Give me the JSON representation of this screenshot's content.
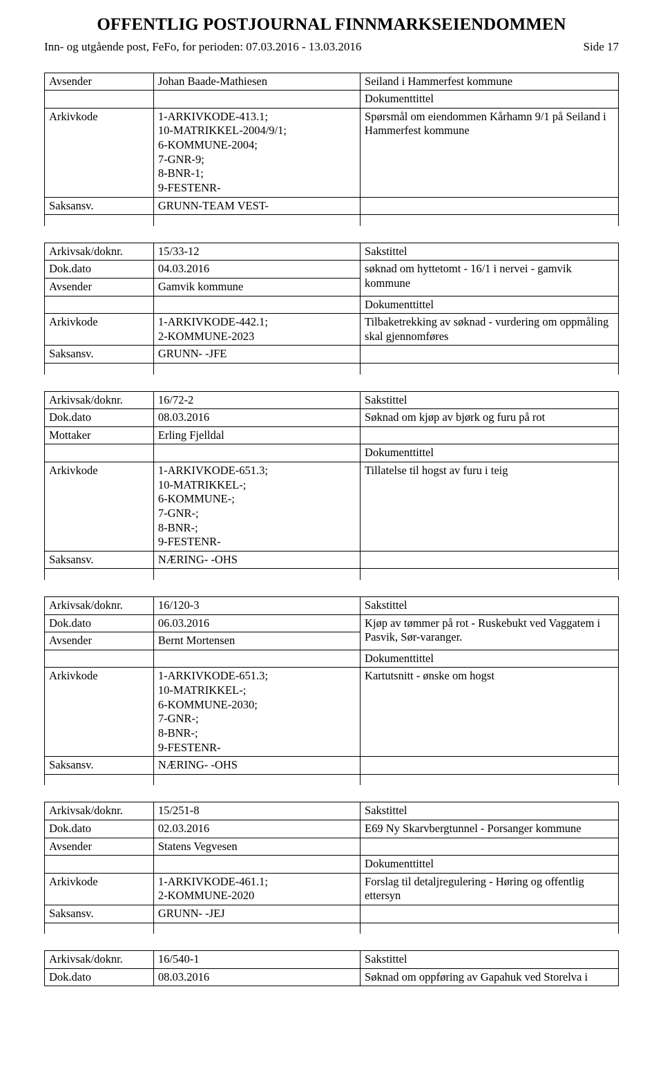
{
  "header": {
    "title": "OFFENTLIG POSTJOURNAL FINNMARKSEIENDOMMEN",
    "subtitle_left": "Inn- og utgående post, FeFo, for perioden: 07.03.2016 - 13.03.2016",
    "page_label": "Side 17"
  },
  "labels": {
    "avsender": "Avsender",
    "mottaker": "Mottaker",
    "arkivkode": "Arkivkode",
    "saksansv": "Saksansv.",
    "arkivsak": "Arkivsak/doknr.",
    "dokdato": "Dok.dato",
    "sakstittel": "Sakstittel",
    "dokumenttittel": "Dokumenttittel"
  },
  "entries": [
    {
      "lead": {
        "c1": "Avsender",
        "c2": "Johan Baade-Mathiesen",
        "c3": "Seiland i Hammerfest kommune"
      },
      "doktitle_row": true,
      "arkivkode": "1-ARKIVKODE-413.1;\n10-MATRIKKEL-2004/9/1;\n6-KOMMUNE-2004;\n7-GNR-9;\n8-BNR-1;\n9-FESTENR-",
      "doktext": "Spørsmål om eiendommen Kårhamn 9/1 på Seiland i Hammerfest kommune",
      "saksansv": "GRUNN-TEAM VEST-"
    },
    {
      "arkivsak": "15/33-12",
      "dokdato": "04.03.2016",
      "saktitle": "søknad om hyttetomt - 16/1 i nervei - gamvik kommune",
      "avsender_label": "Avsender",
      "avsender": "Gamvik kommune",
      "doktitle_row": true,
      "arkivkode": "1-ARKIVKODE-442.1;\n2-KOMMUNE-2023",
      "doktext": "Tilbaketrekking av søknad - vurdering om oppmåling skal gjennomføres",
      "saksansv": "GRUNN- -JFE"
    },
    {
      "arkivsak": "16/72-2",
      "dokdato": "08.03.2016",
      "saktitle": "Søknad om kjøp av  bjørk og furu på rot",
      "avsender_label": "Mottaker",
      "avsender": "Erling Fjelldal",
      "doktitle_row": true,
      "arkivkode": "1-ARKIVKODE-651.3;\n10-MATRIKKEL-;\n6-KOMMUNE-;\n7-GNR-;\n8-BNR-;\n9-FESTENR-",
      "doktext": "Tillatelse til hogst av furu i teig",
      "saksansv": "NÆRING- -OHS"
    },
    {
      "arkivsak": "16/120-3",
      "dokdato": "06.03.2016",
      "saktitle": "Kjøp av tømmer på rot - Ruskebukt ved Vaggatem i Pasvik, Sør-varanger.",
      "avsender_label": "Avsender",
      "avsender": "Bernt Mortensen",
      "doktitle_row": true,
      "arkivkode": "1-ARKIVKODE-651.3;\n10-MATRIKKEL-;\n6-KOMMUNE-2030;\n7-GNR-;\n8-BNR-;\n9-FESTENR-",
      "doktext": "Kartutsnitt - ønske om hogst",
      "saksansv": "NÆRING- -OHS"
    },
    {
      "arkivsak": "15/251-8",
      "dokdato": "02.03.2016",
      "saktitle": "E69 Ny Skarvbergtunnel - Porsanger kommune",
      "avsender_label": "Avsender",
      "avsender": "Statens Vegvesen",
      "doktitle_row": true,
      "arkivkode": "1-ARKIVKODE-461.1;\n2-KOMMUNE-2020",
      "doktext": "Forslag til detaljregulering - Høring og offentlig ettersyn",
      "saksansv": "GRUNN- -JEJ"
    },
    {
      "arkivsak": "16/540-1",
      "dokdato": "08.03.2016",
      "saktitle": "Søknad om oppføring av Gapahuk ved Storelva i"
    }
  ]
}
